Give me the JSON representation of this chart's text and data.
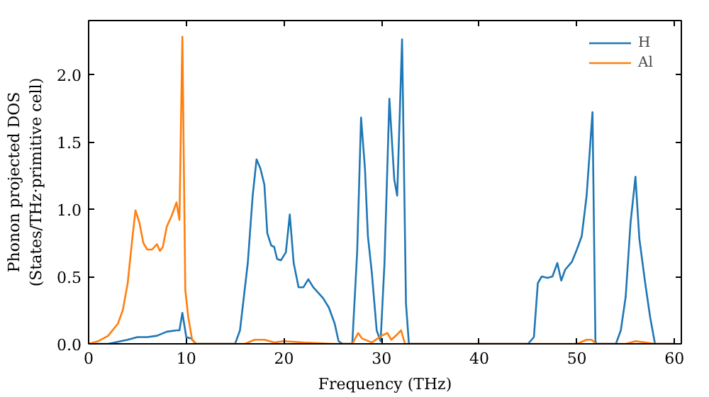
{
  "chart_data": {
    "type": "line",
    "xlabel": "Frequency (THz)",
    "ylabel": "Phonon projected DOS\n(States/THz·primitive cell)",
    "xlim": [
      0,
      60.7
    ],
    "ylim": [
      0,
      2.4
    ],
    "xticks": [
      0,
      10,
      20,
      30,
      40,
      50,
      60
    ],
    "yticks": [
      {
        "value": 0,
        "label": "0.0"
      },
      0.5,
      {
        "value": 1,
        "label": "1.0"
      },
      1.5,
      {
        "value": 2,
        "label": "2.0"
      }
    ],
    "grid": false,
    "legend": "top right",
    "marker": "none",
    "line_style": "solid",
    "series": [
      {
        "name": "H",
        "color": "#1f77b4",
        "x": [
          0,
          2,
          4,
          5,
          6,
          7,
          8,
          9,
          9.3,
          9.6,
          10,
          10.5,
          11,
          15,
          15.5,
          16.3,
          16.8,
          17.2,
          17.6,
          18,
          18.3,
          18.7,
          19,
          19.3,
          19.7,
          20.2,
          20.6,
          21,
          21.5,
          22,
          22.5,
          23,
          24,
          24.6,
          25.2,
          25.6,
          26,
          27,
          27.5,
          27.9,
          28.3,
          28.6,
          29,
          29.5,
          29.9,
          30.3,
          30.8,
          31.3,
          31.6,
          32.1,
          32.5,
          32.8,
          45,
          45.6,
          46,
          46.4,
          47,
          47.5,
          48,
          48.4,
          48.8,
          49.5,
          50,
          50.5,
          51,
          51.6,
          51.9,
          52,
          54,
          54.5,
          55,
          55.5,
          56,
          56.4,
          57,
          57.5,
          58,
          60
        ],
        "values": [
          0,
          0,
          0.03,
          0.05,
          0.05,
          0.06,
          0.09,
          0.1,
          0.1,
          0.23,
          0.05,
          0.04,
          0,
          0,
          0.1,
          0.6,
          1.1,
          1.37,
          1.3,
          1.18,
          0.82,
          0.73,
          0.72,
          0.63,
          0.62,
          0.68,
          0.96,
          0.6,
          0.42,
          0.42,
          0.48,
          0.42,
          0.34,
          0.27,
          0.15,
          0.02,
          0,
          0,
          0.68,
          1.68,
          1.3,
          0.8,
          0.53,
          0.1,
          0.02,
          0.6,
          1.82,
          1.22,
          1.1,
          2.26,
          0.3,
          0,
          0,
          0.05,
          0.45,
          0.5,
          0.49,
          0.5,
          0.6,
          0.47,
          0.55,
          0.61,
          0.7,
          0.8,
          1.1,
          1.72,
          0.02,
          0,
          0,
          0.1,
          0.35,
          0.9,
          1.24,
          0.78,
          0.45,
          0.2,
          0,
          0
        ]
      },
      {
        "name": "Al",
        "color": "#ff7f0e",
        "x": [
          0,
          1,
          2,
          3,
          3.5,
          4,
          4.5,
          4.8,
          5.2,
          5.6,
          6,
          6.5,
          7,
          7.3,
          7.6,
          8,
          8.5,
          9,
          9.3,
          9.6,
          9.9,
          10.2,
          10.6,
          11,
          16,
          17,
          18,
          19,
          20,
          22,
          25,
          27,
          27.6,
          28,
          29,
          30,
          30.6,
          31,
          31.6,
          32,
          32.4,
          50,
          51,
          51.5,
          52,
          55,
          56,
          57,
          58,
          60
        ],
        "values": [
          0,
          0.02,
          0.06,
          0.15,
          0.25,
          0.45,
          0.8,
          0.99,
          0.9,
          0.75,
          0.7,
          0.7,
          0.74,
          0.69,
          0.72,
          0.87,
          0.95,
          1.05,
          0.92,
          2.28,
          0.4,
          0.2,
          0.03,
          0,
          0,
          0.03,
          0.03,
          0.01,
          0.02,
          0.01,
          0,
          0,
          0.08,
          0.04,
          0.01,
          0.06,
          0.08,
          0.03,
          0.07,
          0.1,
          0,
          0,
          0.03,
          0.03,
          0,
          0,
          0.02,
          0.01,
          0,
          0
        ]
      }
    ]
  }
}
